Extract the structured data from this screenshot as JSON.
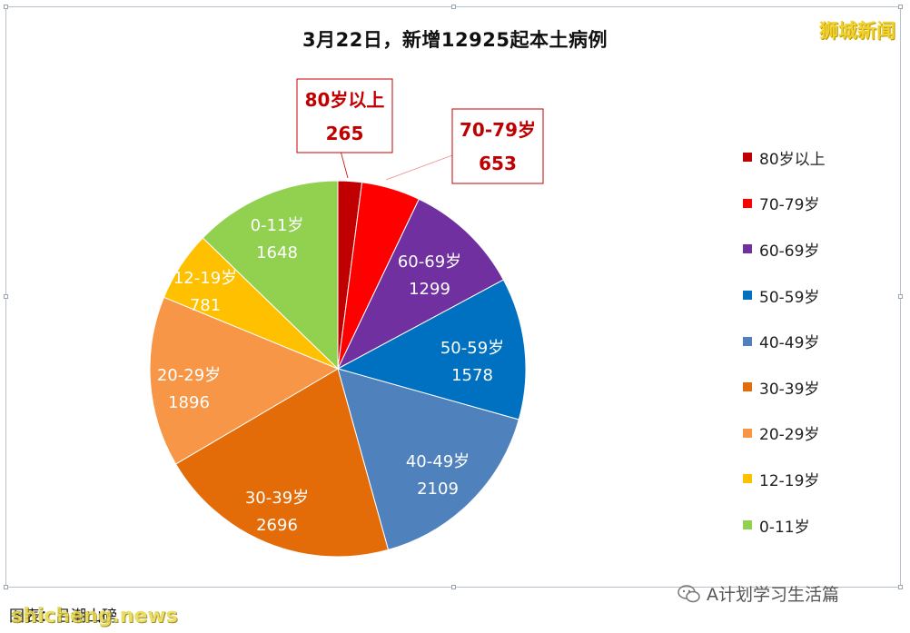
{
  "brand_logo": "狮城新闻",
  "source_note": "图表：吕潮山磅",
  "site_watermark": "shicheng.news",
  "account_name": "A计划学习生活篇",
  "chart_data": {
    "type": "pie",
    "title": "3月22日，新增12925起本土病例",
    "legend_position": "right",
    "slices": [
      {
        "label": "80岁以上",
        "value": 265,
        "color": "#c00000"
      },
      {
        "label": "70-79岁",
        "value": 653,
        "color": "#ff0000"
      },
      {
        "label": "60-69岁",
        "value": 1299,
        "color": "#7030a0"
      },
      {
        "label": "50-59岁",
        "value": 1578,
        "color": "#0070c0"
      },
      {
        "label": "40-49岁",
        "value": 2109,
        "color": "#4f81bd"
      },
      {
        "label": "30-39岁",
        "value": 2696,
        "color": "#e36c09"
      },
      {
        "label": "20-29岁",
        "value": 1896,
        "color": "#f79646"
      },
      {
        "label": "12-19岁",
        "value": 781,
        "color": "#ffc000"
      },
      {
        "label": "0-11岁",
        "value": 1648,
        "color": "#92d050"
      }
    ],
    "legend": [
      "80岁以上",
      "70-79岁",
      "60-69岁",
      "50-59岁",
      "40-49岁",
      "30-39岁",
      "20-29岁",
      "12-19岁",
      "0-11岁"
    ]
  }
}
